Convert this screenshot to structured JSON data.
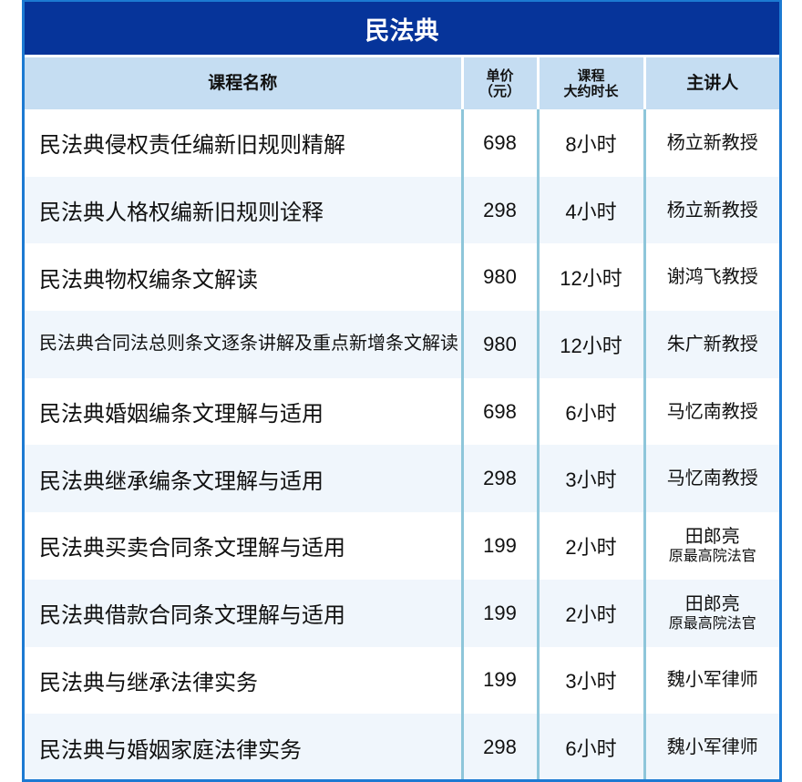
{
  "title": "民法典",
  "headers": {
    "name": "课程名称",
    "price_line1": "单价",
    "price_line2": "（元）",
    "duration_line1": "课程",
    "duration_line2": "大约时长",
    "lecturer": "主讲人"
  },
  "rows": [
    {
      "name": "民法典侵权责任编新旧规则精解",
      "price": "698",
      "duration": "8小时",
      "lecturer": "杨立新教授"
    },
    {
      "name": "民法典人格权编新旧规则诠释",
      "price": "298",
      "duration": "4小时",
      "lecturer": "杨立新教授"
    },
    {
      "name": "民法典物权编条文解读",
      "price": "980",
      "duration": "12小时",
      "lecturer": "谢鸿飞教授"
    },
    {
      "name": "民法典合同法总则条文逐条讲解及重点新增条文解读",
      "price": "980",
      "duration": "12小时",
      "lecturer": "朱广新教授"
    },
    {
      "name": "民法典婚姻编条文理解与适用",
      "price": "698",
      "duration": "6小时",
      "lecturer": "马忆南教授"
    },
    {
      "name": "民法典继承编条文理解与适用",
      "price": "298",
      "duration": "3小时",
      "lecturer": "马忆南教授"
    },
    {
      "name": "民法典买卖合同条文理解与适用",
      "price": "199",
      "duration": "2小时",
      "lecturer": "田郎亮",
      "lecturer_title": "原最高院法官"
    },
    {
      "name": "民法典借款合同条文理解与适用",
      "price": "199",
      "duration": "2小时",
      "lecturer": "田郎亮",
      "lecturer_title": "原最高院法官"
    },
    {
      "name": "民法典与继承法律实务",
      "price": "199",
      "duration": "3小时",
      "lecturer": "魏小军律师"
    },
    {
      "name": "民法典与婚姻家庭法律实务",
      "price": "298",
      "duration": "6小时",
      "lecturer": "魏小军律师"
    }
  ],
  "colors": {
    "title_bg": "#06349a",
    "header_bg": "#c5ddf2",
    "alt_row_bg": "#f0f6fc",
    "border": "#1c7ad2"
  }
}
